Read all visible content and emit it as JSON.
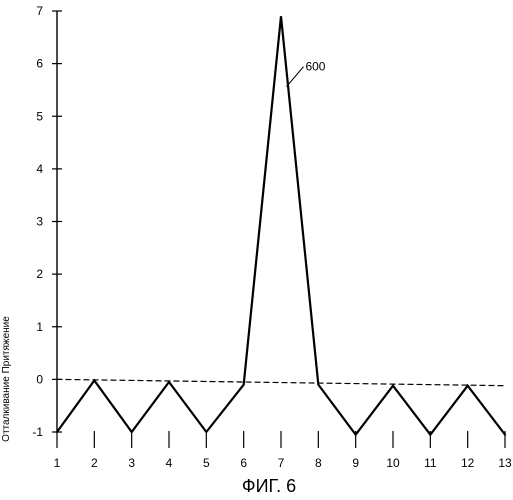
{
  "chart_data": {
    "type": "line",
    "title": "",
    "caption": "ФИГ. 6",
    "xlabel": "",
    "ylabel": "Отталкивание Притяжение",
    "x": [
      1,
      2,
      3,
      4,
      5,
      6,
      7,
      8,
      9,
      10,
      11,
      12,
      13
    ],
    "y_ticks": [
      -1,
      0,
      1,
      2,
      3,
      4,
      5,
      6,
      7
    ],
    "xlim": [
      1,
      13
    ],
    "ylim": [
      -1,
      7
    ],
    "grid": false,
    "legend": "none",
    "series": [
      {
        "values": [
          -1,
          -0.02,
          -1,
          -0.05,
          -1,
          -0.1,
          6.9,
          -0.1,
          -1.05,
          -0.12,
          -1.05,
          -0.12,
          -1.05
        ],
        "style": "solid"
      },
      {
        "values": [
          0,
          -0.01,
          -0.02,
          -0.03,
          -0.04,
          -0.05,
          -0.06,
          -0.07,
          -0.08,
          -0.09,
          -0.1,
          -0.11,
          -0.12
        ],
        "style": "dashed"
      }
    ],
    "annotations": [
      {
        "text": "600",
        "x": 7.2,
        "y": 5.6
      }
    ]
  }
}
